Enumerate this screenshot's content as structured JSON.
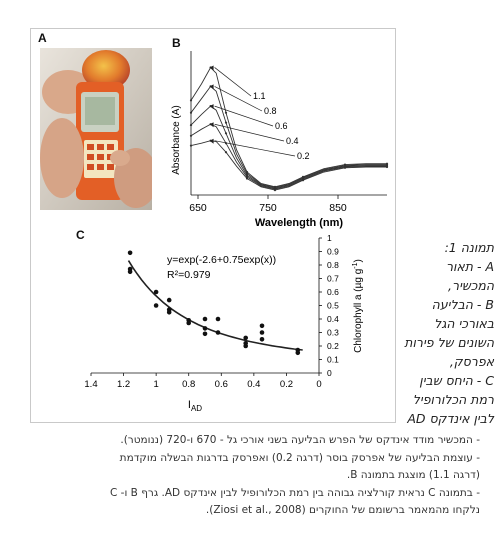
{
  "panels": {
    "a_label": "A",
    "b_label": "B",
    "c_label": "C"
  },
  "panel_b": {
    "ylabel": "Absorbance (A)",
    "xlabel": "Wavelength (nm)",
    "x_ticks": [
      "650",
      "750",
      "850"
    ],
    "curve_labels": [
      "1.1",
      "0.8",
      "0.6",
      "0.4",
      "0.2"
    ]
  },
  "panel_c": {
    "equation": "y=exp(-2.6+0.75exp(x))",
    "r2": "R²=0.979",
    "xlabel_main": "I",
    "xlabel_sub": "AD",
    "ylabel_main": "Chlorophyll a (µg g",
    "ylabel_sup": "-1",
    "ylabel_end": ")",
    "x_ticks": [
      "1.4",
      "1.2",
      "1",
      "0.8",
      "0.6",
      "0.4",
      "0.2",
      "0"
    ],
    "y_ticks": [
      "0",
      "0.1",
      "0.2",
      "0.3",
      "0.4",
      "0.5",
      "0.6",
      "0.7",
      "0.8",
      "0.9",
      "1"
    ]
  },
  "chart_data": [
    {
      "type": "line",
      "panel": "B",
      "xlabel": "Wavelength (nm)",
      "ylabel": "Absorbance (A)",
      "xlim": [
        640,
        920
      ],
      "x_ticks": [
        650,
        750,
        850
      ],
      "series": [
        {
          "name": "1.1",
          "x": [
            640,
            655,
            668,
            676,
            690,
            705,
            720,
            740,
            760,
            780,
            800,
            830,
            860,
            890,
            920
          ],
          "y": [
            1.15,
            1.35,
            1.55,
            1.48,
            1.0,
            0.55,
            0.28,
            0.14,
            0.1,
            0.14,
            0.22,
            0.32,
            0.37,
            0.38,
            0.38
          ]
        },
        {
          "name": "0.8",
          "x": [
            640,
            655,
            668,
            676,
            690,
            705,
            720,
            740,
            760,
            780,
            800,
            830,
            860,
            890,
            920
          ],
          "y": [
            1.0,
            1.17,
            1.32,
            1.26,
            0.88,
            0.5,
            0.26,
            0.13,
            0.09,
            0.13,
            0.21,
            0.31,
            0.36,
            0.37,
            0.37
          ]
        },
        {
          "name": "0.6",
          "x": [
            640,
            655,
            668,
            676,
            690,
            705,
            720,
            740,
            760,
            780,
            800,
            830,
            860,
            890,
            920
          ],
          "y": [
            0.85,
            0.98,
            1.08,
            1.03,
            0.75,
            0.45,
            0.24,
            0.12,
            0.08,
            0.12,
            0.2,
            0.3,
            0.35,
            0.36,
            0.36
          ]
        },
        {
          "name": "0.4",
          "x": [
            640,
            655,
            668,
            676,
            690,
            705,
            720,
            740,
            760,
            780,
            800,
            830,
            860,
            890,
            920
          ],
          "y": [
            0.72,
            0.8,
            0.86,
            0.83,
            0.63,
            0.4,
            0.22,
            0.11,
            0.07,
            0.11,
            0.19,
            0.29,
            0.34,
            0.35,
            0.35
          ]
        },
        {
          "name": "0.2",
          "x": [
            640,
            655,
            668,
            676,
            690,
            705,
            720,
            740,
            760,
            780,
            800,
            830,
            860,
            890,
            920
          ],
          "y": [
            0.6,
            0.63,
            0.66,
            0.65,
            0.52,
            0.35,
            0.2,
            0.1,
            0.06,
            0.1,
            0.18,
            0.28,
            0.33,
            0.34,
            0.34
          ]
        }
      ]
    },
    {
      "type": "scatter",
      "panel": "C",
      "xlabel": "I AD",
      "ylabel": "Chlorophyll a (µg g-1)",
      "xlim": [
        1.4,
        0
      ],
      "ylim": [
        0,
        1
      ],
      "x_reversed": true,
      "points": [
        {
          "x": 1.16,
          "y": 0.89
        },
        {
          "x": 1.16,
          "y": 0.77
        },
        {
          "x": 1.16,
          "y": 0.75
        },
        {
          "x": 1.0,
          "y": 0.6
        },
        {
          "x": 1.0,
          "y": 0.5
        },
        {
          "x": 0.92,
          "y": 0.54
        },
        {
          "x": 0.92,
          "y": 0.47
        },
        {
          "x": 0.92,
          "y": 0.45
        },
        {
          "x": 0.8,
          "y": 0.39
        },
        {
          "x": 0.8,
          "y": 0.37
        },
        {
          "x": 0.7,
          "y": 0.4
        },
        {
          "x": 0.7,
          "y": 0.33
        },
        {
          "x": 0.7,
          "y": 0.29
        },
        {
          "x": 0.62,
          "y": 0.4
        },
        {
          "x": 0.62,
          "y": 0.3
        },
        {
          "x": 0.45,
          "y": 0.26
        },
        {
          "x": 0.45,
          "y": 0.22
        },
        {
          "x": 0.45,
          "y": 0.2
        },
        {
          "x": 0.35,
          "y": 0.35
        },
        {
          "x": 0.35,
          "y": 0.3
        },
        {
          "x": 0.35,
          "y": 0.25
        },
        {
          "x": 0.13,
          "y": 0.17
        },
        {
          "x": 0.13,
          "y": 0.15
        }
      ],
      "fit": {
        "a": -2.6,
        "b": 0.75
      }
    }
  ],
  "side_caption": {
    "lines": [
      "תמונה 1:",
      "A - תאור",
      "המכשיר,",
      "B - הבליעה",
      "באורכי הגל",
      "השונים של פירות",
      "אפרסק,",
      "C - היחס שבין",
      "רמת הכלורופיל",
      "לבין אינדקס AD"
    ]
  },
  "notes": {
    "lines": [
      "- המכשיר מודד אינדקס של הפרש הבליעה בשני אורכי גל - 670 ו-720 (ננומטר).",
      "- עוצמת הבליעה של אפרסק בוסר (דרגה 0.2) ואפרסק בדרגות הבשלה מוקדמת",
      "(דרגה 1.1) מוצגת בתמונה B.",
      "- בתמונה C נראית קורלציה גבוהה בין רמת הכלורופיל לבין אינדקס AD. גרף B ו- C",
      "נלקחו מהמאמר ברשומם של החוקרים (Ziosi et al., 2008)."
    ]
  }
}
